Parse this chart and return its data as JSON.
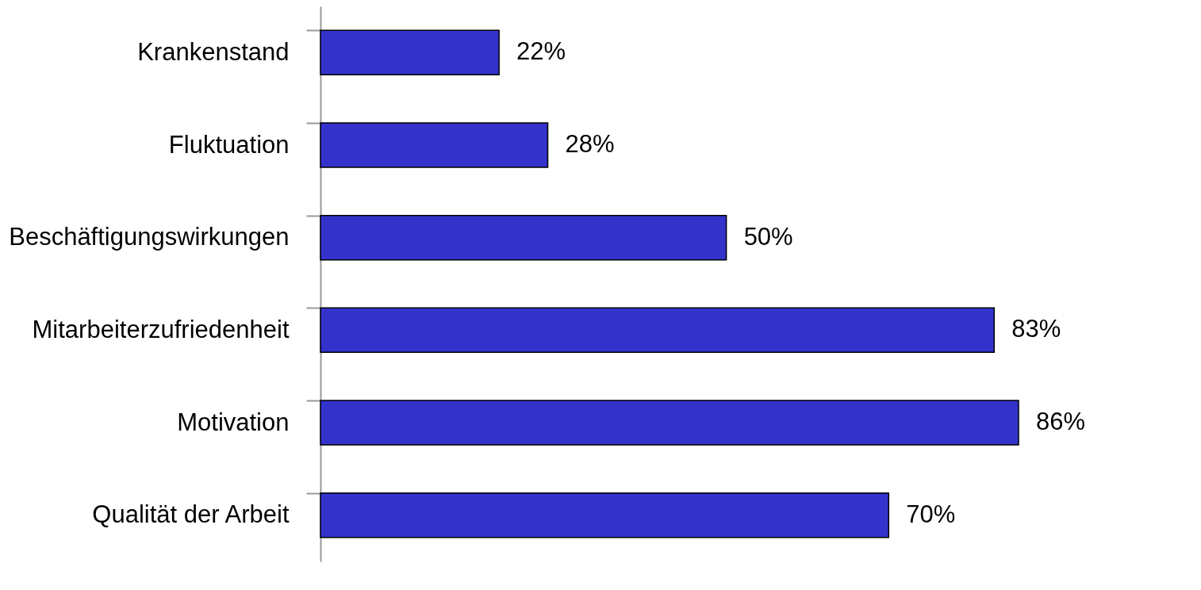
{
  "chart_data": {
    "type": "bar",
    "orientation": "horizontal",
    "categories": [
      "Krankenstand",
      "Fluktuation",
      "Beschäftigungswirkungen",
      "Mitarbeiterzufriedenheit",
      "Motivation",
      "Qualität der Arbeit"
    ],
    "values": [
      22,
      28,
      50,
      83,
      86,
      70
    ],
    "value_labels": [
      "22%",
      "28%",
      "50%",
      "83%",
      "86%",
      "70%"
    ],
    "color": "#3333cc",
    "grid": false,
    "tick_labels": "y"
  }
}
